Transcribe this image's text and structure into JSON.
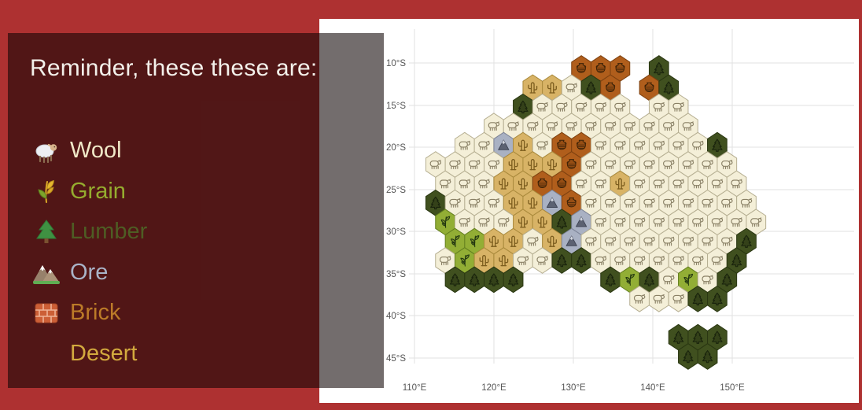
{
  "page": {
    "background_color": "#ae3131",
    "card_color": "#ffffff"
  },
  "panel": {
    "title": "Reminder, these these are:",
    "legend": [
      {
        "id": "wool",
        "label": "Wool",
        "color": "#f0e9c8",
        "icon": "sheep-icon"
      },
      {
        "id": "grain",
        "label": "Grain",
        "color": "#95ac2f",
        "icon": "grain-icon"
      },
      {
        "id": "lumber",
        "label": "Lumber",
        "color": "#4e5d24",
        "icon": "evergreen-tree-icon"
      },
      {
        "id": "ore",
        "label": "Ore",
        "color": "#a9b3c7",
        "icon": "mountain-icon"
      },
      {
        "id": "brick",
        "label": "Brick",
        "color": "#bc7b28",
        "icon": "brick-icon"
      },
      {
        "id": "desert",
        "label": "Desert",
        "color": "#d3aa3e",
        "icon": "cactus-icon"
      }
    ]
  },
  "chart_data": {
    "type": "heatmap",
    "subtype": "hex-tile-map-of-australia",
    "title": "",
    "xlabel": "",
    "ylabel": "",
    "x_ticks": {
      "labels": [
        "110°E",
        "120°E",
        "130°E",
        "140°E",
        "150°E"
      ],
      "px": [
        527,
        628,
        729,
        830,
        931
      ]
    },
    "y_ticks": {
      "labels": [
        "10°S",
        "15°S",
        "20°S",
        "25°S",
        "30°S",
        "35°S",
        "40°S",
        "45°S"
      ],
      "px": [
        80,
        134,
        187,
        241,
        294,
        348,
        401,
        455
      ]
    },
    "grid": {
      "on": true,
      "color": "#e2e2e2",
      "tick_font_color": "#555555",
      "tick_font_px": 11.5
    },
    "hex_geometry": {
      "x0": 455,
      "dx_half_col": 12.35,
      "y0": 87,
      "dy_row": 24.4,
      "hex_w": 24.7,
      "hex_h": 32.6
    },
    "terrain": {
      "w": {
        "name": "wool",
        "fill": "#f4efd8",
        "stroke": "#b6af92"
      },
      "g": {
        "name": "grain",
        "fill": "#92ae35",
        "stroke": "#64801f"
      },
      "l": {
        "name": "lumber",
        "fill": "#40501f",
        "stroke": "#2a3712"
      },
      "o": {
        "name": "ore",
        "fill": "#a9b1c3",
        "stroke": "#7d8498"
      },
      "b": {
        "name": "brick",
        "fill": "#b05e1c",
        "stroke": "#7e4110"
      },
      "d": {
        "name": "desert",
        "fill": "#d8b366",
        "stroke": "#aa8a3c"
      }
    },
    "rows": [
      {
        "r": 1,
        "cells": [
          [
            23,
            "b"
          ],
          [
            25,
            "b"
          ],
          [
            27,
            "b"
          ],
          [
            31,
            "l"
          ]
        ]
      },
      {
        "r": 2,
        "cells": [
          [
            18,
            "d"
          ],
          [
            20,
            "d"
          ],
          [
            22,
            "w"
          ],
          [
            24,
            "l"
          ],
          [
            26,
            "b"
          ],
          [
            30,
            "b"
          ],
          [
            32,
            "l"
          ]
        ]
      },
      {
        "r": 3,
        "cells": [
          [
            17,
            "l"
          ],
          [
            19,
            "w"
          ],
          [
            21,
            "w"
          ],
          [
            23,
            "w"
          ],
          [
            25,
            "w"
          ],
          [
            27,
            "w"
          ],
          [
            31,
            "w"
          ],
          [
            33,
            "w"
          ]
        ]
      },
      {
        "r": 4,
        "cells": [
          [
            14,
            "w"
          ],
          [
            16,
            "w"
          ],
          [
            18,
            "w"
          ],
          [
            20,
            "w"
          ],
          [
            22,
            "w"
          ],
          [
            24,
            "w"
          ],
          [
            26,
            "w"
          ],
          [
            28,
            "w"
          ],
          [
            30,
            "w"
          ],
          [
            32,
            "w"
          ],
          [
            34,
            "w"
          ]
        ]
      },
      {
        "r": 5,
        "cells": [
          [
            11,
            "w"
          ],
          [
            13,
            "w"
          ],
          [
            15,
            "o"
          ],
          [
            17,
            "d"
          ],
          [
            19,
            "w"
          ],
          [
            21,
            "b"
          ],
          [
            23,
            "b"
          ],
          [
            25,
            "w"
          ],
          [
            27,
            "w"
          ],
          [
            29,
            "w"
          ],
          [
            31,
            "w"
          ],
          [
            33,
            "w"
          ],
          [
            35,
            "w"
          ],
          [
            37,
            "l"
          ]
        ]
      },
      {
        "r": 6,
        "cells": [
          [
            8,
            "w"
          ],
          [
            10,
            "w"
          ],
          [
            12,
            "w"
          ],
          [
            14,
            "w"
          ],
          [
            16,
            "d"
          ],
          [
            18,
            "d"
          ],
          [
            20,
            "d"
          ],
          [
            22,
            "b"
          ],
          [
            24,
            "w"
          ],
          [
            26,
            "w"
          ],
          [
            28,
            "w"
          ],
          [
            30,
            "w"
          ],
          [
            32,
            "w"
          ],
          [
            34,
            "w"
          ],
          [
            36,
            "w"
          ],
          [
            38,
            "w"
          ]
        ]
      },
      {
        "r": 7,
        "cells": [
          [
            9,
            "w"
          ],
          [
            11,
            "w"
          ],
          [
            13,
            "w"
          ],
          [
            15,
            "d"
          ],
          [
            17,
            "d"
          ],
          [
            19,
            "b"
          ],
          [
            21,
            "b"
          ],
          [
            23,
            "w"
          ],
          [
            25,
            "w"
          ],
          [
            27,
            "d"
          ],
          [
            29,
            "w"
          ],
          [
            31,
            "w"
          ],
          [
            33,
            "w"
          ],
          [
            35,
            "w"
          ],
          [
            37,
            "w"
          ],
          [
            39,
            "w"
          ]
        ]
      },
      {
        "r": 8,
        "cells": [
          [
            8,
            "l"
          ],
          [
            10,
            "w"
          ],
          [
            12,
            "w"
          ],
          [
            14,
            "w"
          ],
          [
            16,
            "d"
          ],
          [
            18,
            "d"
          ],
          [
            20,
            "o"
          ],
          [
            22,
            "b"
          ],
          [
            24,
            "w"
          ],
          [
            26,
            "w"
          ],
          [
            28,
            "w"
          ],
          [
            30,
            "w"
          ],
          [
            32,
            "w"
          ],
          [
            34,
            "w"
          ],
          [
            36,
            "w"
          ],
          [
            38,
            "w"
          ],
          [
            40,
            "w"
          ]
        ]
      },
      {
        "r": 9,
        "cells": [
          [
            9,
            "g"
          ],
          [
            11,
            "w"
          ],
          [
            13,
            "w"
          ],
          [
            15,
            "w"
          ],
          [
            17,
            "d"
          ],
          [
            19,
            "d"
          ],
          [
            21,
            "l"
          ],
          [
            23,
            "o"
          ],
          [
            25,
            "w"
          ],
          [
            27,
            "w"
          ],
          [
            29,
            "w"
          ],
          [
            31,
            "w"
          ],
          [
            33,
            "w"
          ],
          [
            35,
            "w"
          ],
          [
            37,
            "w"
          ],
          [
            39,
            "w"
          ],
          [
            41,
            "w"
          ]
        ]
      },
      {
        "r": 10,
        "cells": [
          [
            10,
            "g"
          ],
          [
            12,
            "g"
          ],
          [
            14,
            "d"
          ],
          [
            16,
            "d"
          ],
          [
            18,
            "w"
          ],
          [
            20,
            "d"
          ],
          [
            22,
            "o"
          ],
          [
            24,
            "w"
          ],
          [
            26,
            "w"
          ],
          [
            28,
            "w"
          ],
          [
            30,
            "w"
          ],
          [
            32,
            "w"
          ],
          [
            34,
            "w"
          ],
          [
            36,
            "w"
          ],
          [
            38,
            "w"
          ],
          [
            40,
            "l"
          ]
        ]
      },
      {
        "r": 11,
        "cells": [
          [
            9,
            "w"
          ],
          [
            11,
            "g"
          ],
          [
            13,
            "d"
          ],
          [
            15,
            "d"
          ],
          [
            17,
            "w"
          ],
          [
            19,
            "w"
          ],
          [
            21,
            "l"
          ],
          [
            23,
            "l"
          ],
          [
            25,
            "w"
          ],
          [
            27,
            "w"
          ],
          [
            29,
            "w"
          ],
          [
            31,
            "w"
          ],
          [
            33,
            "w"
          ],
          [
            35,
            "w"
          ],
          [
            37,
            "w"
          ],
          [
            39,
            "l"
          ]
        ]
      },
      {
        "r": 12,
        "cells": [
          [
            10,
            "l"
          ],
          [
            12,
            "l"
          ],
          [
            14,
            "l"
          ],
          [
            16,
            "l"
          ],
          [
            26,
            "l"
          ],
          [
            28,
            "g"
          ],
          [
            30,
            "l"
          ],
          [
            32,
            "w"
          ],
          [
            34,
            "g"
          ],
          [
            36,
            "w"
          ],
          [
            38,
            "l"
          ]
        ]
      },
      {
        "r": 13,
        "cells": [
          [
            29,
            "w"
          ],
          [
            31,
            "w"
          ],
          [
            33,
            "w"
          ],
          [
            35,
            "l"
          ],
          [
            37,
            "l"
          ]
        ]
      },
      {
        "r": 15,
        "cells": [
          [
            33,
            "l"
          ],
          [
            35,
            "l"
          ],
          [
            37,
            "l"
          ]
        ]
      },
      {
        "r": 16,
        "cells": [
          [
            34,
            "l"
          ],
          [
            36,
            "l"
          ]
        ]
      }
    ]
  }
}
